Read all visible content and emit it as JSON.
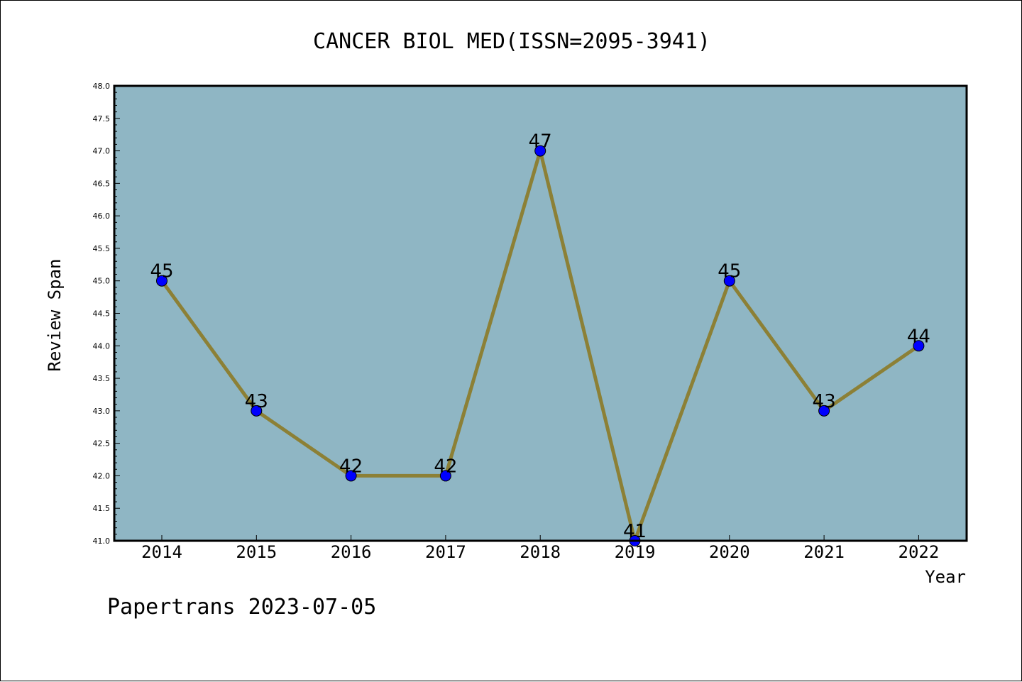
{
  "chart_data": {
    "type": "line",
    "title": "CANCER BIOL MED(ISSN=2095-3941)",
    "xlabel": "Year",
    "ylabel": "Review Span",
    "x": [
      "2014",
      "2015",
      "2016",
      "2017",
      "2018",
      "2019",
      "2020",
      "2021",
      "2022"
    ],
    "series": [
      {
        "values": [
          45,
          43,
          42,
          42,
          47,
          41,
          45,
          43,
          44
        ]
      }
    ],
    "ylim": [
      41.0,
      48.0
    ],
    "y_ticks": [
      "41.0",
      "41.5",
      "42.0",
      "42.5",
      "43.0",
      "43.5",
      "44.0",
      "44.5",
      "45.0",
      "45.5",
      "46.0",
      "46.5",
      "47.0",
      "47.5",
      "48.0"
    ],
    "grid": false,
    "data_labels": true
  },
  "footer": {
    "watermark": "Papertrans 2023-07-05"
  },
  "colors": {
    "plot_background": "#8fb6c4",
    "line": "#8c8036",
    "marker": "#0000ff",
    "text": "#000000"
  }
}
